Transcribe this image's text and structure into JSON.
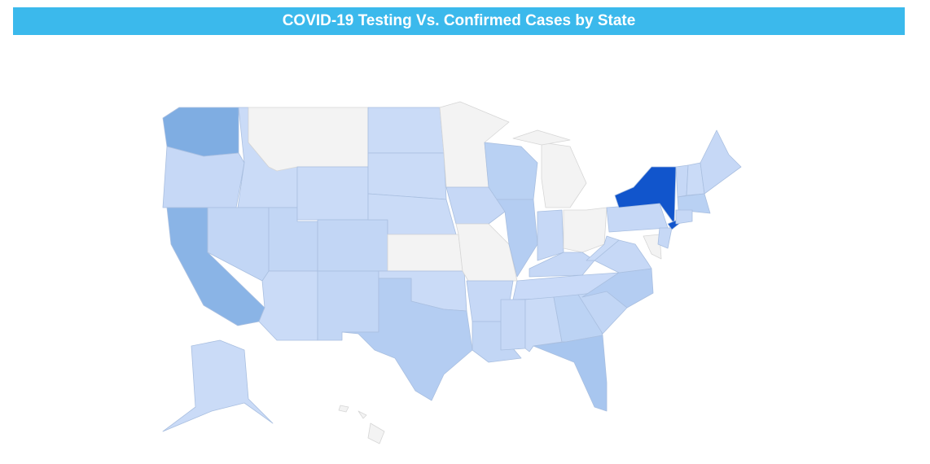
{
  "header": {
    "title": "COVID-19 Testing Vs. Confirmed Cases by State"
  }
}
